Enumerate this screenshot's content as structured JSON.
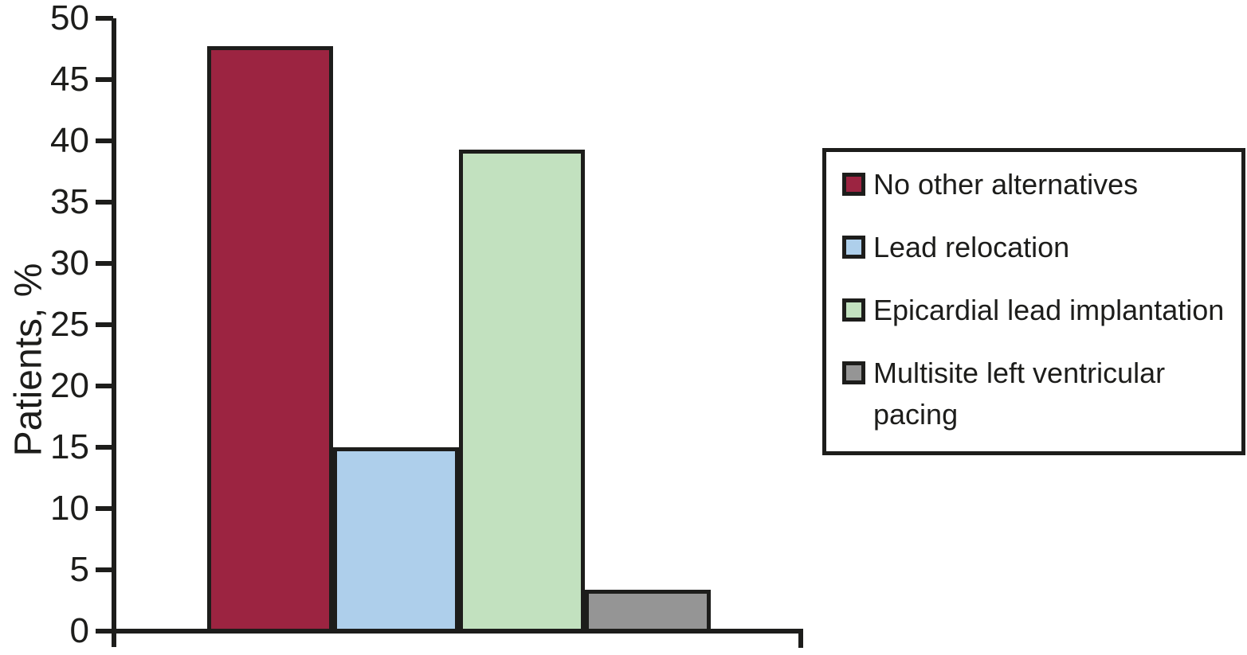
{
  "chart_data": {
    "type": "bar",
    "title": "",
    "xlabel": "",
    "ylabel": "Patients, %",
    "ylim": [
      0,
      50
    ],
    "ytick_step": 5,
    "yticks": [
      50,
      45,
      40,
      35,
      30,
      25,
      20,
      15,
      10,
      5,
      0
    ],
    "grid": false,
    "legend_position": "right",
    "axis_color": "#1d1d1b",
    "series": [
      {
        "name": "No other alternatives",
        "value": 47.7,
        "color": "#9c2441"
      },
      {
        "name": "Lead relocation",
        "value": 15.0,
        "color": "#aecfeb"
      },
      {
        "name": "Epicardial lead implantation",
        "value": 39.3,
        "color": "#c2e1bf"
      },
      {
        "name": "Multisite left ventricular pacing",
        "value": 3.4,
        "color": "#959595"
      }
    ]
  }
}
